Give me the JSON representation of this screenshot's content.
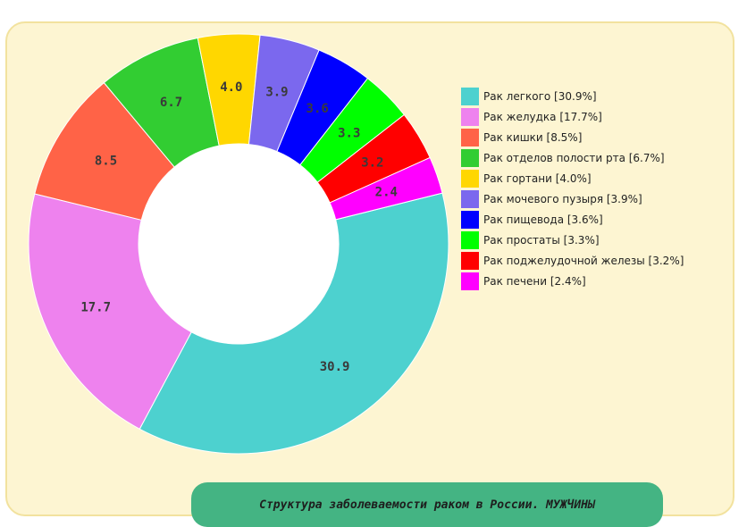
{
  "chart_data": {
    "type": "pie",
    "donut": true,
    "title": "Структура заболеваемости раком в России. МУЖЧИНЫ",
    "legend_position": "top-right",
    "slices": [
      {
        "name": "Рак легкого",
        "legend": "Рак легкого [30.9%]",
        "value": 30.9,
        "label": "30.9",
        "color": "#4dd1cf"
      },
      {
        "name": "Рак желудка",
        "legend": "Рак желудка [17.7%]",
        "value": 17.7,
        "label": "17.7",
        "color": "#ee82ee"
      },
      {
        "name": "Рак кишки",
        "legend": "Рак кишки [8.5%]",
        "value": 8.5,
        "label": "8.5",
        "color": "#ff6347"
      },
      {
        "name": "Рак отделов полости рта",
        "legend": "Рак отделов полости рта [6.7%]",
        "value": 6.7,
        "label": "6.7",
        "color": "#32cd32"
      },
      {
        "name": "Рак гортани",
        "legend": "Рак гортани [4.0%]",
        "value": 4.0,
        "label": "4.0",
        "color": "#ffd700"
      },
      {
        "name": "Рак мочевого пузыря",
        "legend": "Рак мочевого пузыря [3.9%]",
        "value": 3.9,
        "label": "3.9",
        "color": "#7b68ee"
      },
      {
        "name": "Рак пищевода",
        "legend": "Рак пищевода [3.6%]",
        "value": 3.6,
        "label": "3.6",
        "color": "#0000ff"
      },
      {
        "name": "Рак простаты",
        "legend": "Рак простаты [3.3%]",
        "value": 3.3,
        "label": "3.3",
        "color": "#00ff00"
      },
      {
        "name": "Рак поджелудочной железы",
        "legend": "Рак поджелудочной железы [3.2%]",
        "value": 3.2,
        "label": "3.2",
        "color": "#ff0000"
      },
      {
        "name": "Рак печени",
        "legend": "Рак печени [2.4%]",
        "value": 2.4,
        "label": "2.4",
        "color": "#ff00ff"
      }
    ]
  },
  "colors": {
    "panel_bg": "#fdf5d2",
    "panel_border": "#f2e29e",
    "title_bg": "#44b483"
  }
}
